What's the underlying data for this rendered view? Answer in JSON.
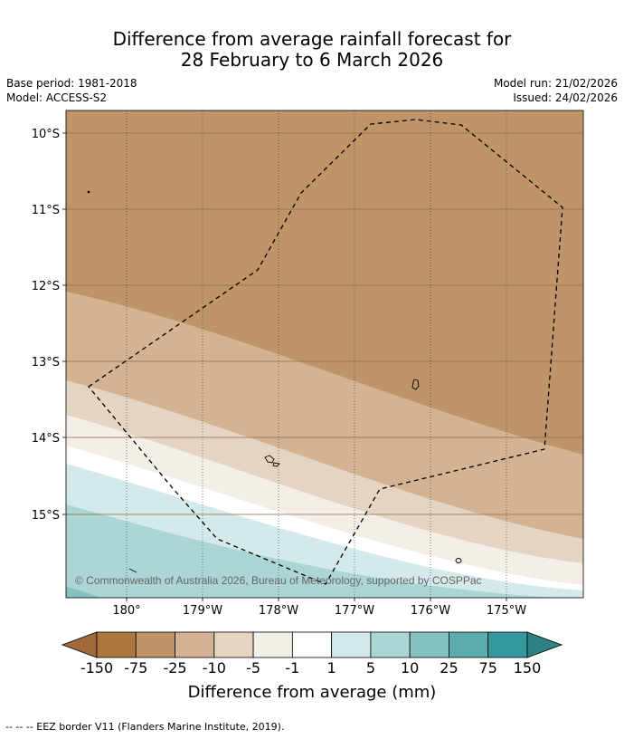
{
  "title": {
    "line1": "Difference from average rainfall forecast for",
    "line2": "28 February to 6 March 2026"
  },
  "meta": {
    "base_period": "Base period: 1981-2018",
    "model": "Model: ACCESS-S2",
    "model_run": "Model run: 21/02/2026",
    "issued": "Issued: 24/02/2026"
  },
  "map": {
    "lat_ticks": [
      "10°S",
      "11°S",
      "12°S",
      "13°S",
      "14°S",
      "15°S"
    ],
    "lon_ticks": [
      "180°",
      "179°W",
      "178°W",
      "177°W",
      "176°W",
      "175°W"
    ],
    "copyright": "© Commonwealth of Australia 2026, Bureau of Meteorology, supported by COSPPac",
    "gridlines": true,
    "colors": {
      "lt_m150": "#a0693a",
      "m150_m75": "#ad783f",
      "m75_m25": "#c09469",
      "m25_m10": "#d3b392",
      "m10_m5": "#e5d4c2",
      "m5_m1": "#f3eee8",
      "m1_1": "#ffffff",
      "1_5": "#d4e9e9",
      "5_10": "#acd5d5",
      "10_25": "#86c1c2",
      "25_75": "#5bacae",
      "75_150": "#34999c",
      "gt_150": "#2b8183"
    }
  },
  "colorbar": {
    "ticks": [
      "-150",
      "-75",
      "-25",
      "-10",
      "-5",
      "-1",
      "1",
      "5",
      "10",
      "25",
      "75",
      "150"
    ],
    "label": "Difference from average (mm)"
  },
  "footnote": "--  --  -- EEZ border V11 (Flanders Marine Institute, 2019)."
}
